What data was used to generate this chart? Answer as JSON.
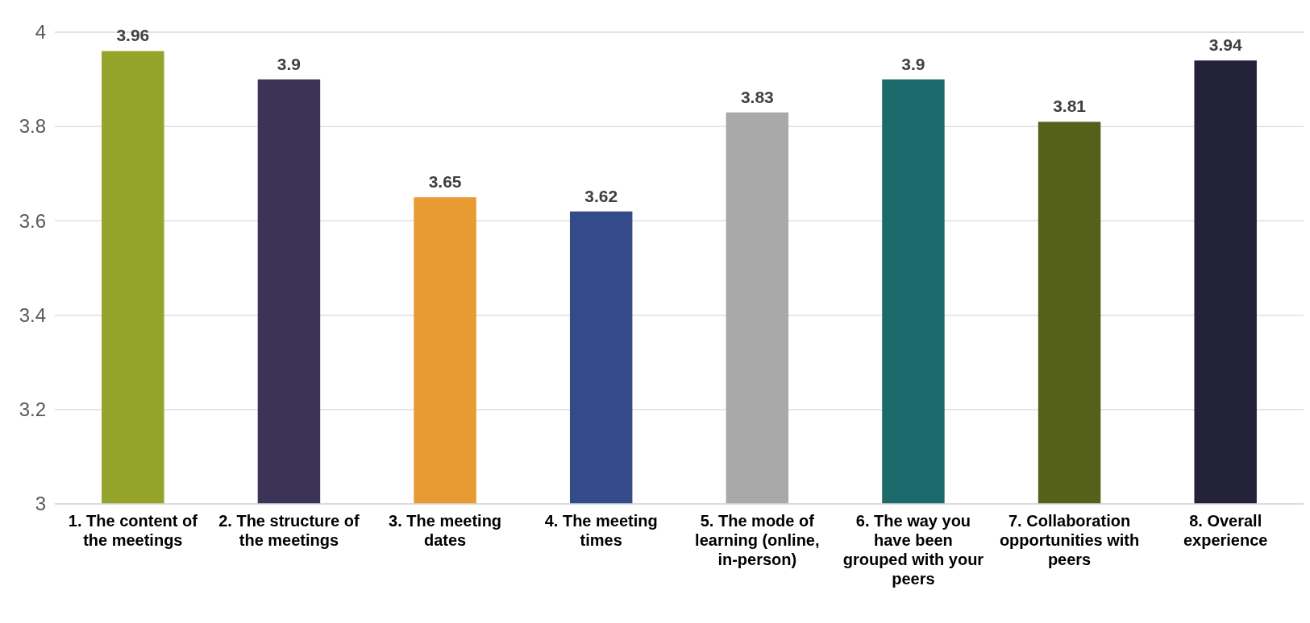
{
  "chart_data": {
    "type": "bar",
    "categories": [
      "1. The content of the meetings",
      "2. The structure of the meetings",
      "3. The meeting dates",
      "4. The meeting times",
      "5. The mode of learning (online, in-person)",
      "6. The way you have been grouped with your peers",
      "7. Collaboration opportunities with peers",
      "8. Overall experience"
    ],
    "values": [
      3.96,
      3.9,
      3.65,
      3.62,
      3.83,
      3.9,
      3.81,
      3.94
    ],
    "colors": [
      "#94a42a",
      "#3c3359",
      "#e89b33",
      "#334b88",
      "#a9a9a9",
      "#1c6a6c",
      "#556019",
      "#24213a"
    ],
    "ylim": [
      3,
      4
    ],
    "yticks": [
      3,
      3.2,
      3.4,
      3.6,
      3.8,
      4
    ],
    "grid": "y",
    "data_labels": true
  }
}
